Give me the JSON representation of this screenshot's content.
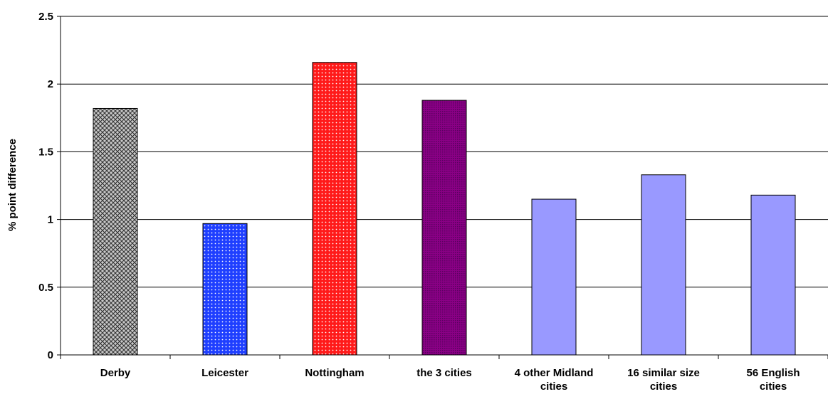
{
  "chart_data": {
    "type": "bar",
    "title": "",
    "xlabel": "",
    "ylabel": "% point difference",
    "ylim": [
      0,
      2.5
    ],
    "yticks": [
      "0",
      "0.5",
      "1",
      "1.5",
      "2",
      "2.5"
    ],
    "grid": true,
    "legend": "none",
    "categories": [
      [
        "Derby"
      ],
      [
        "Leicester"
      ],
      [
        "Nottingham"
      ],
      [
        "the 3 cities"
      ],
      [
        "4 other Midland",
        "cities"
      ],
      [
        "16 similar size",
        "cities"
      ],
      [
        "56 English",
        "cities"
      ]
    ],
    "values": [
      1.82,
      0.97,
      2.16,
      1.88,
      1.15,
      1.33,
      1.18
    ],
    "bar_styles": [
      {
        "pattern": "crosshatch",
        "fg": "#000000",
        "bg": "#c0c0c0"
      },
      {
        "pattern": "dots",
        "fg": "#ffffff",
        "bg": "#1f3fff"
      },
      {
        "pattern": "dots",
        "fg": "#ffffff",
        "bg": "#ff1a1a"
      },
      {
        "pattern": "fine",
        "fg": "#5a0060",
        "bg": "#9a0090"
      },
      {
        "pattern": "solid",
        "fg": "#9999ff",
        "bg": "#9999ff"
      },
      {
        "pattern": "solid",
        "fg": "#9999ff",
        "bg": "#9999ff"
      },
      {
        "pattern": "solid",
        "fg": "#9999ff",
        "bg": "#9999ff"
      }
    ]
  }
}
